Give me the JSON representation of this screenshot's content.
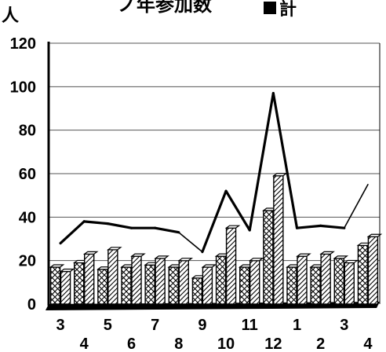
{
  "header": {
    "unit_label": "人",
    "title_fragment": "ノ年参加数",
    "legend_label": "計"
  },
  "chart_data": {
    "type": "bar",
    "categories": [
      "3",
      "4",
      "5",
      "6",
      "7",
      "8",
      "9",
      "10",
      "11",
      "12",
      "1",
      "2",
      "3",
      "4"
    ],
    "series": [
      {
        "values": [
          17,
          19,
          16,
          17,
          18,
          17,
          12,
          22,
          17,
          43,
          17,
          17,
          21,
          27
        ]
      },
      {
        "values": [
          15,
          23,
          25,
          22,
          21,
          20,
          17,
          35,
          20,
          59,
          22,
          23,
          19,
          31
        ]
      },
      {
        "name": "計",
        "type": "line",
        "values": [
          28,
          38,
          37,
          35,
          35,
          33,
          24,
          52,
          34,
          97,
          35,
          36,
          35,
          55
        ]
      }
    ],
    "ylim": [
      0,
      120
    ],
    "yticks": [
      0,
      20,
      40,
      60,
      80,
      100,
      120
    ],
    "grid": true,
    "legend_position": "top-right"
  }
}
